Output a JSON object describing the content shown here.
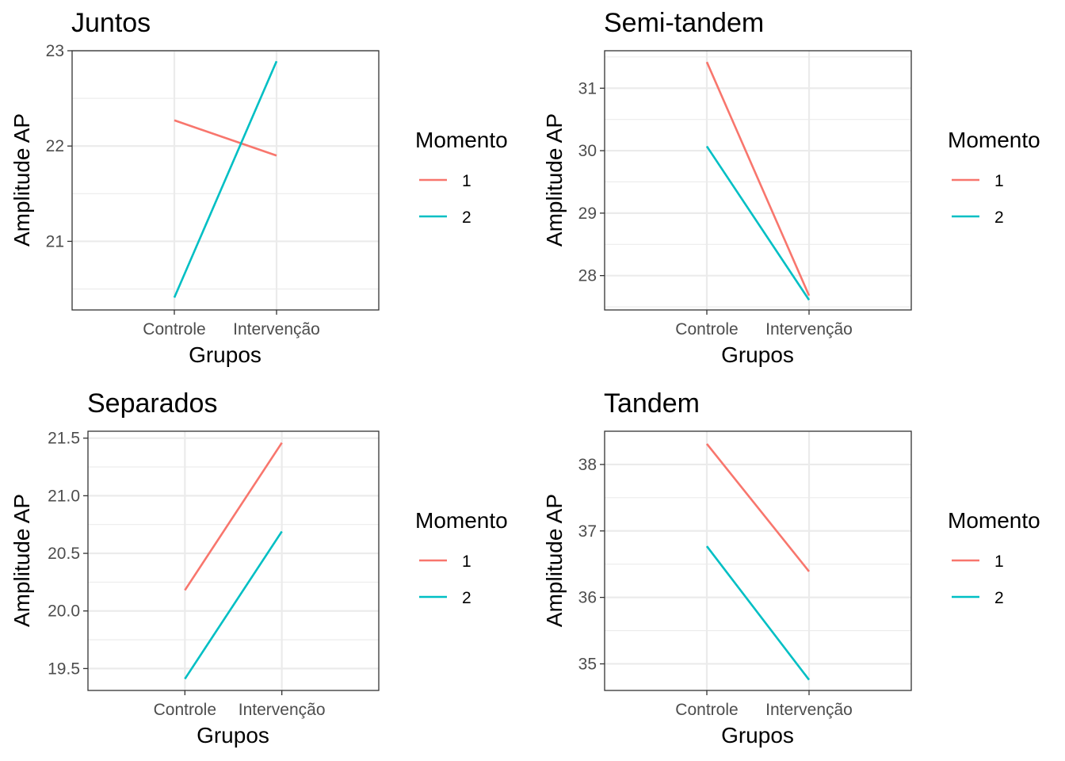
{
  "chart_data": [
    {
      "type": "line",
      "title": "Juntos",
      "xlabel": "Grupos",
      "ylabel": "Amplitude AP",
      "categories": [
        "Controle",
        "Intervenção"
      ],
      "yticks": [
        21,
        22,
        23
      ],
      "ylim": [
        20.28,
        23.0
      ],
      "grid": true,
      "legend_title": "Momento",
      "legend_position": "right",
      "series": [
        {
          "name": "1",
          "color": "#F8766D",
          "values": [
            22.27,
            21.9
          ]
        },
        {
          "name": "2",
          "color": "#00BFC4",
          "values": [
            20.41,
            22.89
          ]
        }
      ]
    },
    {
      "type": "line",
      "title": "Semi-tandem",
      "xlabel": "Grupos",
      "ylabel": "Amplitude AP",
      "categories": [
        "Controle",
        "Intervenção"
      ],
      "yticks": [
        28,
        29,
        30,
        31
      ],
      "ylim": [
        27.45,
        31.6
      ],
      "grid": true,
      "legend_title": "Momento",
      "legend_position": "right",
      "series": [
        {
          "name": "1",
          "color": "#F8766D",
          "values": [
            31.42,
            27.68
          ]
        },
        {
          "name": "2",
          "color": "#00BFC4",
          "values": [
            30.07,
            27.61
          ]
        }
      ]
    },
    {
      "type": "line",
      "title": "Separados",
      "xlabel": "Grupos",
      "ylabel": "Amplitude AP",
      "categories": [
        "Controle",
        "Intervenção"
      ],
      "yticks": [
        19.5,
        20.0,
        20.5,
        21.0,
        21.5
      ],
      "ytick_labels": [
        "19.5",
        "20.0",
        "20.5",
        "21.0",
        "21.5"
      ],
      "ylim": [
        19.31,
        21.56
      ],
      "grid": true,
      "legend_title": "Momento",
      "legend_position": "right",
      "series": [
        {
          "name": "1",
          "color": "#F8766D",
          "values": [
            20.18,
            21.46
          ]
        },
        {
          "name": "2",
          "color": "#00BFC4",
          "values": [
            19.41,
            20.69
          ]
        }
      ]
    },
    {
      "type": "line",
      "title": "Tandem",
      "xlabel": "Grupos",
      "ylabel": "Amplitude AP",
      "categories": [
        "Controle",
        "Intervenção"
      ],
      "yticks": [
        35,
        36,
        37,
        38
      ],
      "ylim": [
        34.6,
        38.5
      ],
      "grid": true,
      "legend_title": "Momento",
      "legend_position": "right",
      "series": [
        {
          "name": "1",
          "color": "#F8766D",
          "values": [
            38.31,
            36.39
          ]
        },
        {
          "name": "2",
          "color": "#00BFC4",
          "values": [
            36.77,
            34.76
          ]
        }
      ]
    }
  ]
}
